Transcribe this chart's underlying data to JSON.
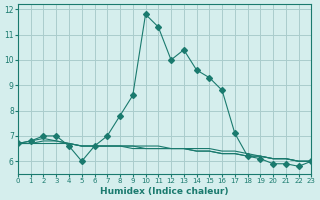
{
  "xlabel": "Humidex (Indice chaleur)",
  "ylabel": "",
  "background_color": "#d5eeed",
  "grid_color": "#aacccc",
  "line_color": "#1a7a6e",
  "xlim": [
    0,
    23
  ],
  "ylim": [
    5.5,
    12.2
  ],
  "xticks": [
    0,
    1,
    2,
    3,
    4,
    5,
    6,
    7,
    8,
    9,
    10,
    11,
    12,
    13,
    14,
    15,
    16,
    17,
    18,
    19,
    20,
    21,
    22,
    23
  ],
  "yticks": [
    6,
    7,
    8,
    9,
    10,
    11,
    12
  ],
  "series": [
    {
      "x": [
        0,
        1,
        2,
        3,
        4,
        5,
        6,
        7,
        8,
        9,
        10,
        11,
        12,
        13,
        14,
        15,
        16,
        17,
        18,
        19,
        20,
        21,
        22,
        23
      ],
      "y": [
        6.7,
        6.8,
        7.0,
        7.0,
        6.6,
        6.0,
        6.6,
        7.0,
        7.8,
        8.6,
        11.8,
        11.3,
        10.0,
        10.4,
        9.6,
        9.3,
        8.8,
        7.1,
        6.2,
        6.1,
        5.9,
        5.9,
        5.8,
        6.0
      ],
      "marker": "D",
      "markersize": 3
    },
    {
      "x": [
        0,
        1,
        2,
        3,
        4,
        5,
        6,
        7,
        8,
        9,
        10,
        11,
        12,
        13,
        14,
        15,
        16,
        17,
        18,
        19,
        20,
        21,
        22,
        23
      ],
      "y": [
        6.7,
        6.8,
        6.9,
        6.8,
        6.7,
        6.6,
        6.6,
        6.6,
        6.6,
        6.6,
        6.5,
        6.5,
        6.5,
        6.5,
        6.4,
        6.4,
        6.3,
        6.3,
        6.2,
        6.2,
        6.1,
        6.1,
        6.0,
        6.0
      ],
      "marker": null,
      "markersize": 0
    },
    {
      "x": [
        0,
        1,
        2,
        3,
        4,
        5,
        6,
        7,
        8,
        9,
        10,
        11,
        12,
        13,
        14,
        15,
        16,
        17,
        18,
        19,
        20,
        21,
        22,
        23
      ],
      "y": [
        6.7,
        6.7,
        6.8,
        6.8,
        6.7,
        6.6,
        6.6,
        6.6,
        6.6,
        6.6,
        6.6,
        6.6,
        6.5,
        6.5,
        6.5,
        6.5,
        6.4,
        6.4,
        6.3,
        6.2,
        6.1,
        6.1,
        6.0,
        6.0
      ],
      "marker": null,
      "markersize": 0
    },
    {
      "x": [
        0,
        1,
        2,
        3,
        4,
        5,
        6,
        7,
        8,
        9,
        10,
        11,
        12,
        13,
        14,
        15,
        16,
        17,
        18,
        19,
        20,
        21,
        22,
        23
      ],
      "y": [
        6.7,
        6.7,
        6.7,
        6.7,
        6.7,
        6.6,
        6.6,
        6.6,
        6.6,
        6.5,
        6.5,
        6.5,
        6.5,
        6.5,
        6.4,
        6.4,
        6.3,
        6.3,
        6.2,
        6.2,
        6.1,
        6.1,
        6.0,
        6.0
      ],
      "marker": null,
      "markersize": 0
    }
  ]
}
